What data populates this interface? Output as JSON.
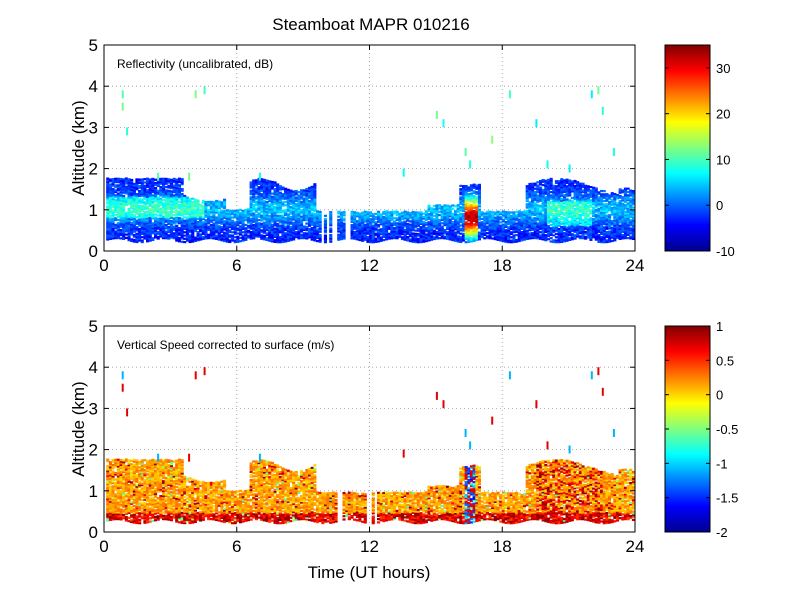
{
  "figure": {
    "title": "Steamboat MAPR 010216"
  },
  "chart_data": [
    {
      "type": "heatmap",
      "panel": "top",
      "annotation": "Reflectivity (uncalibrated, dB)",
      "xlabel": "",
      "ylabel": "Altitude (km)",
      "xlim": [
        0,
        24
      ],
      "ylim": [
        0,
        5
      ],
      "xticks": [
        "0",
        "6",
        "12",
        "18",
        "24"
      ],
      "yticks": [
        "0",
        "1",
        "2",
        "3",
        "4",
        "5"
      ],
      "grid": true,
      "colorbar": {
        "min": -10,
        "max": 35,
        "ticks": [
          "30",
          "20",
          "10",
          "0",
          "-10"
        ],
        "tick_values": [
          30,
          20,
          10,
          0,
          -10
        ]
      },
      "description_of_field": "Dense echo layer between ~0.3 and ~1.7 km altitude across the day, mostly -10 to 5 dB; strong convective cell near 16.3–16.6 h reaching ~30 dB; sparse echoes up to ~4 km."
    },
    {
      "type": "heatmap",
      "panel": "bottom",
      "annotation": "Vertical Speed corrected to surface (m/s)",
      "xlabel": "Time (UT hours)",
      "ylabel": "Altitude (km)",
      "xlim": [
        0,
        24
      ],
      "ylim": [
        0,
        5
      ],
      "xticks": [
        "0",
        "6",
        "12",
        "18",
        "24"
      ],
      "yticks": [
        "0",
        "1",
        "2",
        "3",
        "4",
        "5"
      ],
      "grid": true,
      "colorbar": {
        "min": -2,
        "max": 1,
        "ticks": [
          "1",
          "0.5",
          "0",
          "-0.5",
          "-1",
          "-1.5",
          "-2"
        ],
        "tick_values": [
          1,
          0.5,
          0,
          -0.5,
          -1,
          -1.5,
          -2
        ]
      },
      "description_of_field": "Mostly 0 to 0.5 m/s (yellow/orange) in the 0.2–1.8 km layer; red upward streaks near 0.3 km and around 20–22 h; sparse points up to ~4 km."
    }
  ],
  "colors": {
    "axis": "#000000",
    "grid": "#9a9a9a",
    "background": "#ffffff"
  }
}
